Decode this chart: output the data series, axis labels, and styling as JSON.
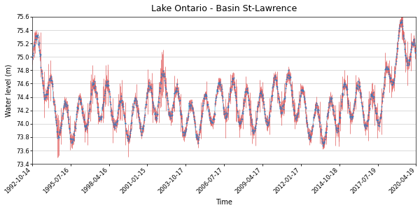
{
  "title": "Lake Ontario - Basin St-Lawrence",
  "xlabel": "Time",
  "ylabel": "Water level (m)",
  "ylim": [
    73.4,
    75.6
  ],
  "yticks": [
    73.4,
    73.6,
    73.8,
    74.0,
    74.2,
    74.4,
    74.6,
    74.8,
    75.0,
    75.2,
    75.4,
    75.6
  ],
  "line_color": "#87CEEB",
  "dot_color": "#3a7abf",
  "errorbar_color": "#e05555",
  "dot_size": 2,
  "line_width": 0.8,
  "start_date": "1992-10-14",
  "end_date": "2020-04-19",
  "xtick_labels": [
    "1992-10-14",
    "1995-07-16",
    "1998-04-16",
    "2001-01-15",
    "2003-10-17",
    "2006-07-17",
    "2009-04-17",
    "2012-01-17",
    "2014-10-18",
    "2017-07-19",
    "2020-04-19"
  ],
  "figsize": [
    6.0,
    3.0
  ],
  "dpi": 100,
  "title_fontsize": 9,
  "axis_fontsize": 7,
  "tick_fontsize": 6,
  "background_color": "#ffffff",
  "grid_color": "#cccccc",
  "grid_linestyle": "-",
  "grid_linewidth": 0.5,
  "grid_axis": "y"
}
